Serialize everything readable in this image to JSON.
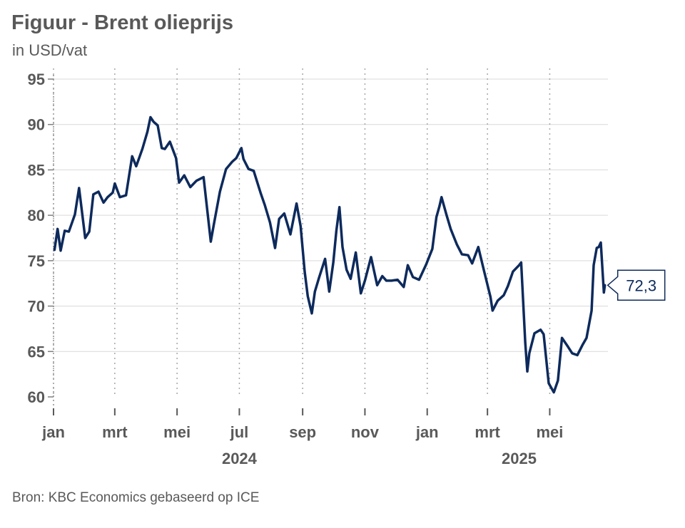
{
  "title": "Figuur - Brent olieprijs",
  "subtitle": "in USD/vat",
  "source": "Bron: KBC Economics gebaseerd op ICE",
  "chart_data": {
    "type": "line",
    "title": "Figuur - Brent olieprijs",
    "ylabel": "in USD/vat",
    "ylim": [
      60,
      95
    ],
    "yticks": [
      60,
      65,
      70,
      75,
      80,
      85,
      90,
      95
    ],
    "xlim": [
      "2024-01-01",
      "2025-06-27"
    ],
    "xticks": [
      {
        "date": "2024-01-01",
        "label": "jan"
      },
      {
        "date": "2024-03-01",
        "label": "mrt"
      },
      {
        "date": "2024-05-01",
        "label": "mei"
      },
      {
        "date": "2024-07-01",
        "label": "jul"
      },
      {
        "date": "2024-09-01",
        "label": "sep"
      },
      {
        "date": "2024-11-01",
        "label": "nov"
      },
      {
        "date": "2025-01-01",
        "label": "jan"
      },
      {
        "date": "2025-03-01",
        "label": "mrt"
      },
      {
        "date": "2025-05-01",
        "label": "mei"
      }
    ],
    "years": [
      {
        "date": "2024-07-01",
        "label": "2024"
      },
      {
        "date": "2025-04-01",
        "label": "2025"
      }
    ],
    "grid": "horizontal solid, vertical dotted at month ticks",
    "line_color": "#0d2a5c",
    "last_value_label": "72,3",
    "series": [
      {
        "x": [
          "2024-01-02",
          "2024-01-05",
          "2024-01-08",
          "2024-01-12",
          "2024-01-16",
          "2024-01-22",
          "2024-01-26",
          "2024-02-01",
          "2024-02-05",
          "2024-02-09",
          "2024-02-14",
          "2024-02-19",
          "2024-02-23",
          "2024-02-28",
          "2024-03-01",
          "2024-03-06",
          "2024-03-12",
          "2024-03-18",
          "2024-03-22",
          "2024-03-28",
          "2024-04-02",
          "2024-04-05",
          "2024-04-08",
          "2024-04-12",
          "2024-04-16",
          "2024-04-19",
          "2024-04-24",
          "2024-04-30",
          "2024-05-03",
          "2024-05-08",
          "2024-05-14",
          "2024-05-20",
          "2024-05-27",
          "2024-06-03",
          "2024-06-06",
          "2024-06-12",
          "2024-06-18",
          "2024-06-24",
          "2024-06-28",
          "2024-07-03",
          "2024-07-05",
          "2024-07-10",
          "2024-07-15",
          "2024-07-22",
          "2024-07-26",
          "2024-07-31",
          "2024-08-05",
          "2024-08-09",
          "2024-08-14",
          "2024-08-20",
          "2024-08-26",
          "2024-08-30",
          "2024-09-03",
          "2024-09-06",
          "2024-09-10",
          "2024-09-13",
          "2024-09-17",
          "2024-09-23",
          "2024-09-27",
          "2024-10-01",
          "2024-10-04",
          "2024-10-07",
          "2024-10-10",
          "2024-10-14",
          "2024-10-18",
          "2024-10-23",
          "2024-10-28",
          "2024-11-01",
          "2024-11-07",
          "2024-11-13",
          "2024-11-18",
          "2024-11-22",
          "2024-11-27",
          "2024-12-03",
          "2024-12-09",
          "2024-12-13",
          "2024-12-18",
          "2024-12-24",
          "2024-12-31",
          "2025-01-06",
          "2025-01-10",
          "2025-01-13",
          "2025-01-15",
          "2025-01-20",
          "2025-01-24",
          "2025-01-30",
          "2025-02-04",
          "2025-02-10",
          "2025-02-14",
          "2025-02-20",
          "2025-02-26",
          "2025-03-04",
          "2025-03-06",
          "2025-03-11",
          "2025-03-17",
          "2025-03-21",
          "2025-03-26",
          "2025-04-01",
          "2025-04-03",
          "2025-04-07",
          "2025-04-09",
          "2025-04-11",
          "2025-04-16",
          "2025-04-22",
          "2025-04-25",
          "2025-04-30",
          "2025-05-05",
          "2025-05-09",
          "2025-05-13",
          "2025-05-19",
          "2025-05-23",
          "2025-05-28",
          "2025-06-02",
          "2025-06-06",
          "2025-06-11",
          "2025-06-13",
          "2025-06-16",
          "2025-06-18",
          "2025-06-20",
          "2025-06-23",
          "2025-06-24"
        ],
        "y": [
          76.2,
          78.5,
          76.1,
          78.3,
          78.2,
          80.1,
          83.0,
          77.5,
          78.2,
          82.3,
          82.6,
          81.4,
          82.0,
          82.5,
          83.5,
          82.0,
          82.2,
          86.5,
          85.4,
          87.3,
          89.2,
          90.8,
          90.3,
          89.9,
          87.4,
          87.3,
          88.1,
          86.3,
          83.6,
          84.4,
          83.1,
          83.8,
          84.2,
          77.1,
          79.0,
          82.6,
          85.1,
          85.9,
          86.3,
          87.4,
          86.2,
          85.1,
          84.9,
          82.4,
          81.1,
          79.2,
          76.4,
          79.6,
          80.2,
          77.9,
          81.3,
          78.8,
          73.8,
          71.1,
          69.2,
          71.6,
          73.1,
          75.2,
          71.6,
          74.8,
          78.3,
          80.9,
          76.5,
          74.0,
          73.0,
          75.9,
          71.4,
          72.8,
          75.4,
          72.3,
          73.3,
          72.8,
          72.8,
          72.9,
          72.1,
          74.5,
          73.2,
          72.9,
          74.6,
          76.3,
          79.8,
          81.0,
          82.0,
          80.0,
          78.5,
          76.8,
          75.7,
          75.6,
          74.7,
          76.5,
          73.7,
          71.0,
          69.5,
          70.6,
          71.2,
          72.2,
          73.8,
          74.5,
          74.8,
          66.0,
          62.8,
          64.8,
          67.0,
          67.4,
          66.9,
          61.5,
          60.5,
          61.8,
          66.5,
          65.5,
          64.8,
          64.6,
          65.7,
          66.5,
          69.5,
          74.5,
          76.4,
          76.5,
          77.0,
          71.5,
          72.3
        ]
      }
    ]
  }
}
